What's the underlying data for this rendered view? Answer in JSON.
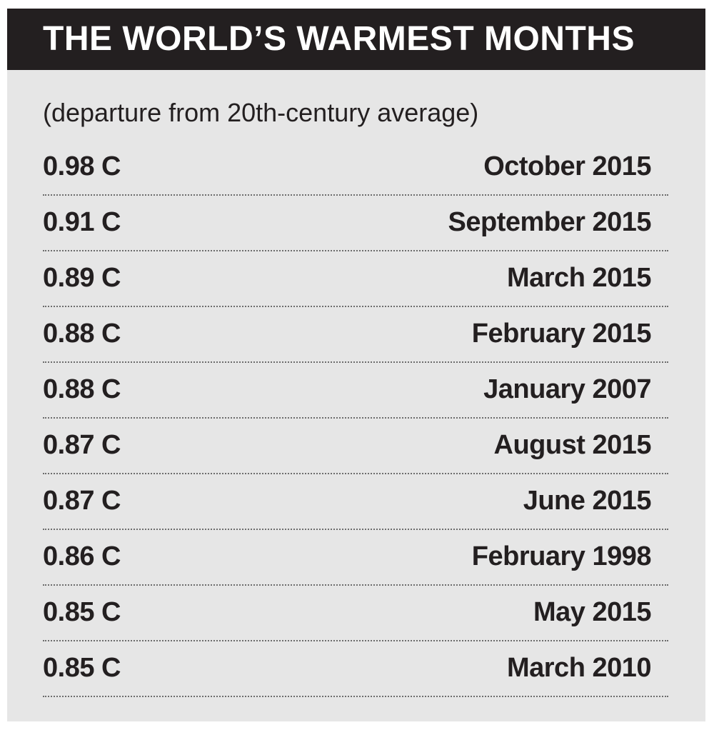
{
  "title": "THE WORLD’S WARMEST MONTHS",
  "subtitle": "(departure from 20th-century average)",
  "colors": {
    "title_bar": "#231f20",
    "title_text": "#ffffff",
    "panel_background": "#e6e6e6",
    "body_text": "#231f20",
    "rule": "#6d6d6d"
  },
  "chart_data": {
    "type": "table",
    "title": "THE WORLD’S WARMEST MONTHS",
    "subtitle": "(departure from 20th-century average)",
    "columns": [
      "",
      ""
    ],
    "unit": "C",
    "rows": [
      {
        "value_label": "0.98 C",
        "value": 0.98,
        "month": "October 2015"
      },
      {
        "value_label": "0.91 C",
        "value": 0.91,
        "month": "September 2015"
      },
      {
        "value_label": "0.89 C",
        "value": 0.89,
        "month": "March 2015"
      },
      {
        "value_label": "0.88 C",
        "value": 0.88,
        "month": "February 2015"
      },
      {
        "value_label": "0.88 C",
        "value": 0.88,
        "month": "January 2007"
      },
      {
        "value_label": "0.87 C",
        "value": 0.87,
        "month": "August 2015"
      },
      {
        "value_label": "0.87 C",
        "value": 0.87,
        "month": "June 2015"
      },
      {
        "value_label": "0.86 C",
        "value": 0.86,
        "month": "February 1998"
      },
      {
        "value_label": "0.85 C",
        "value": 0.85,
        "month": "May 2015"
      },
      {
        "value_label": "0.85 C",
        "value": 0.85,
        "month": "March 2010"
      }
    ]
  }
}
